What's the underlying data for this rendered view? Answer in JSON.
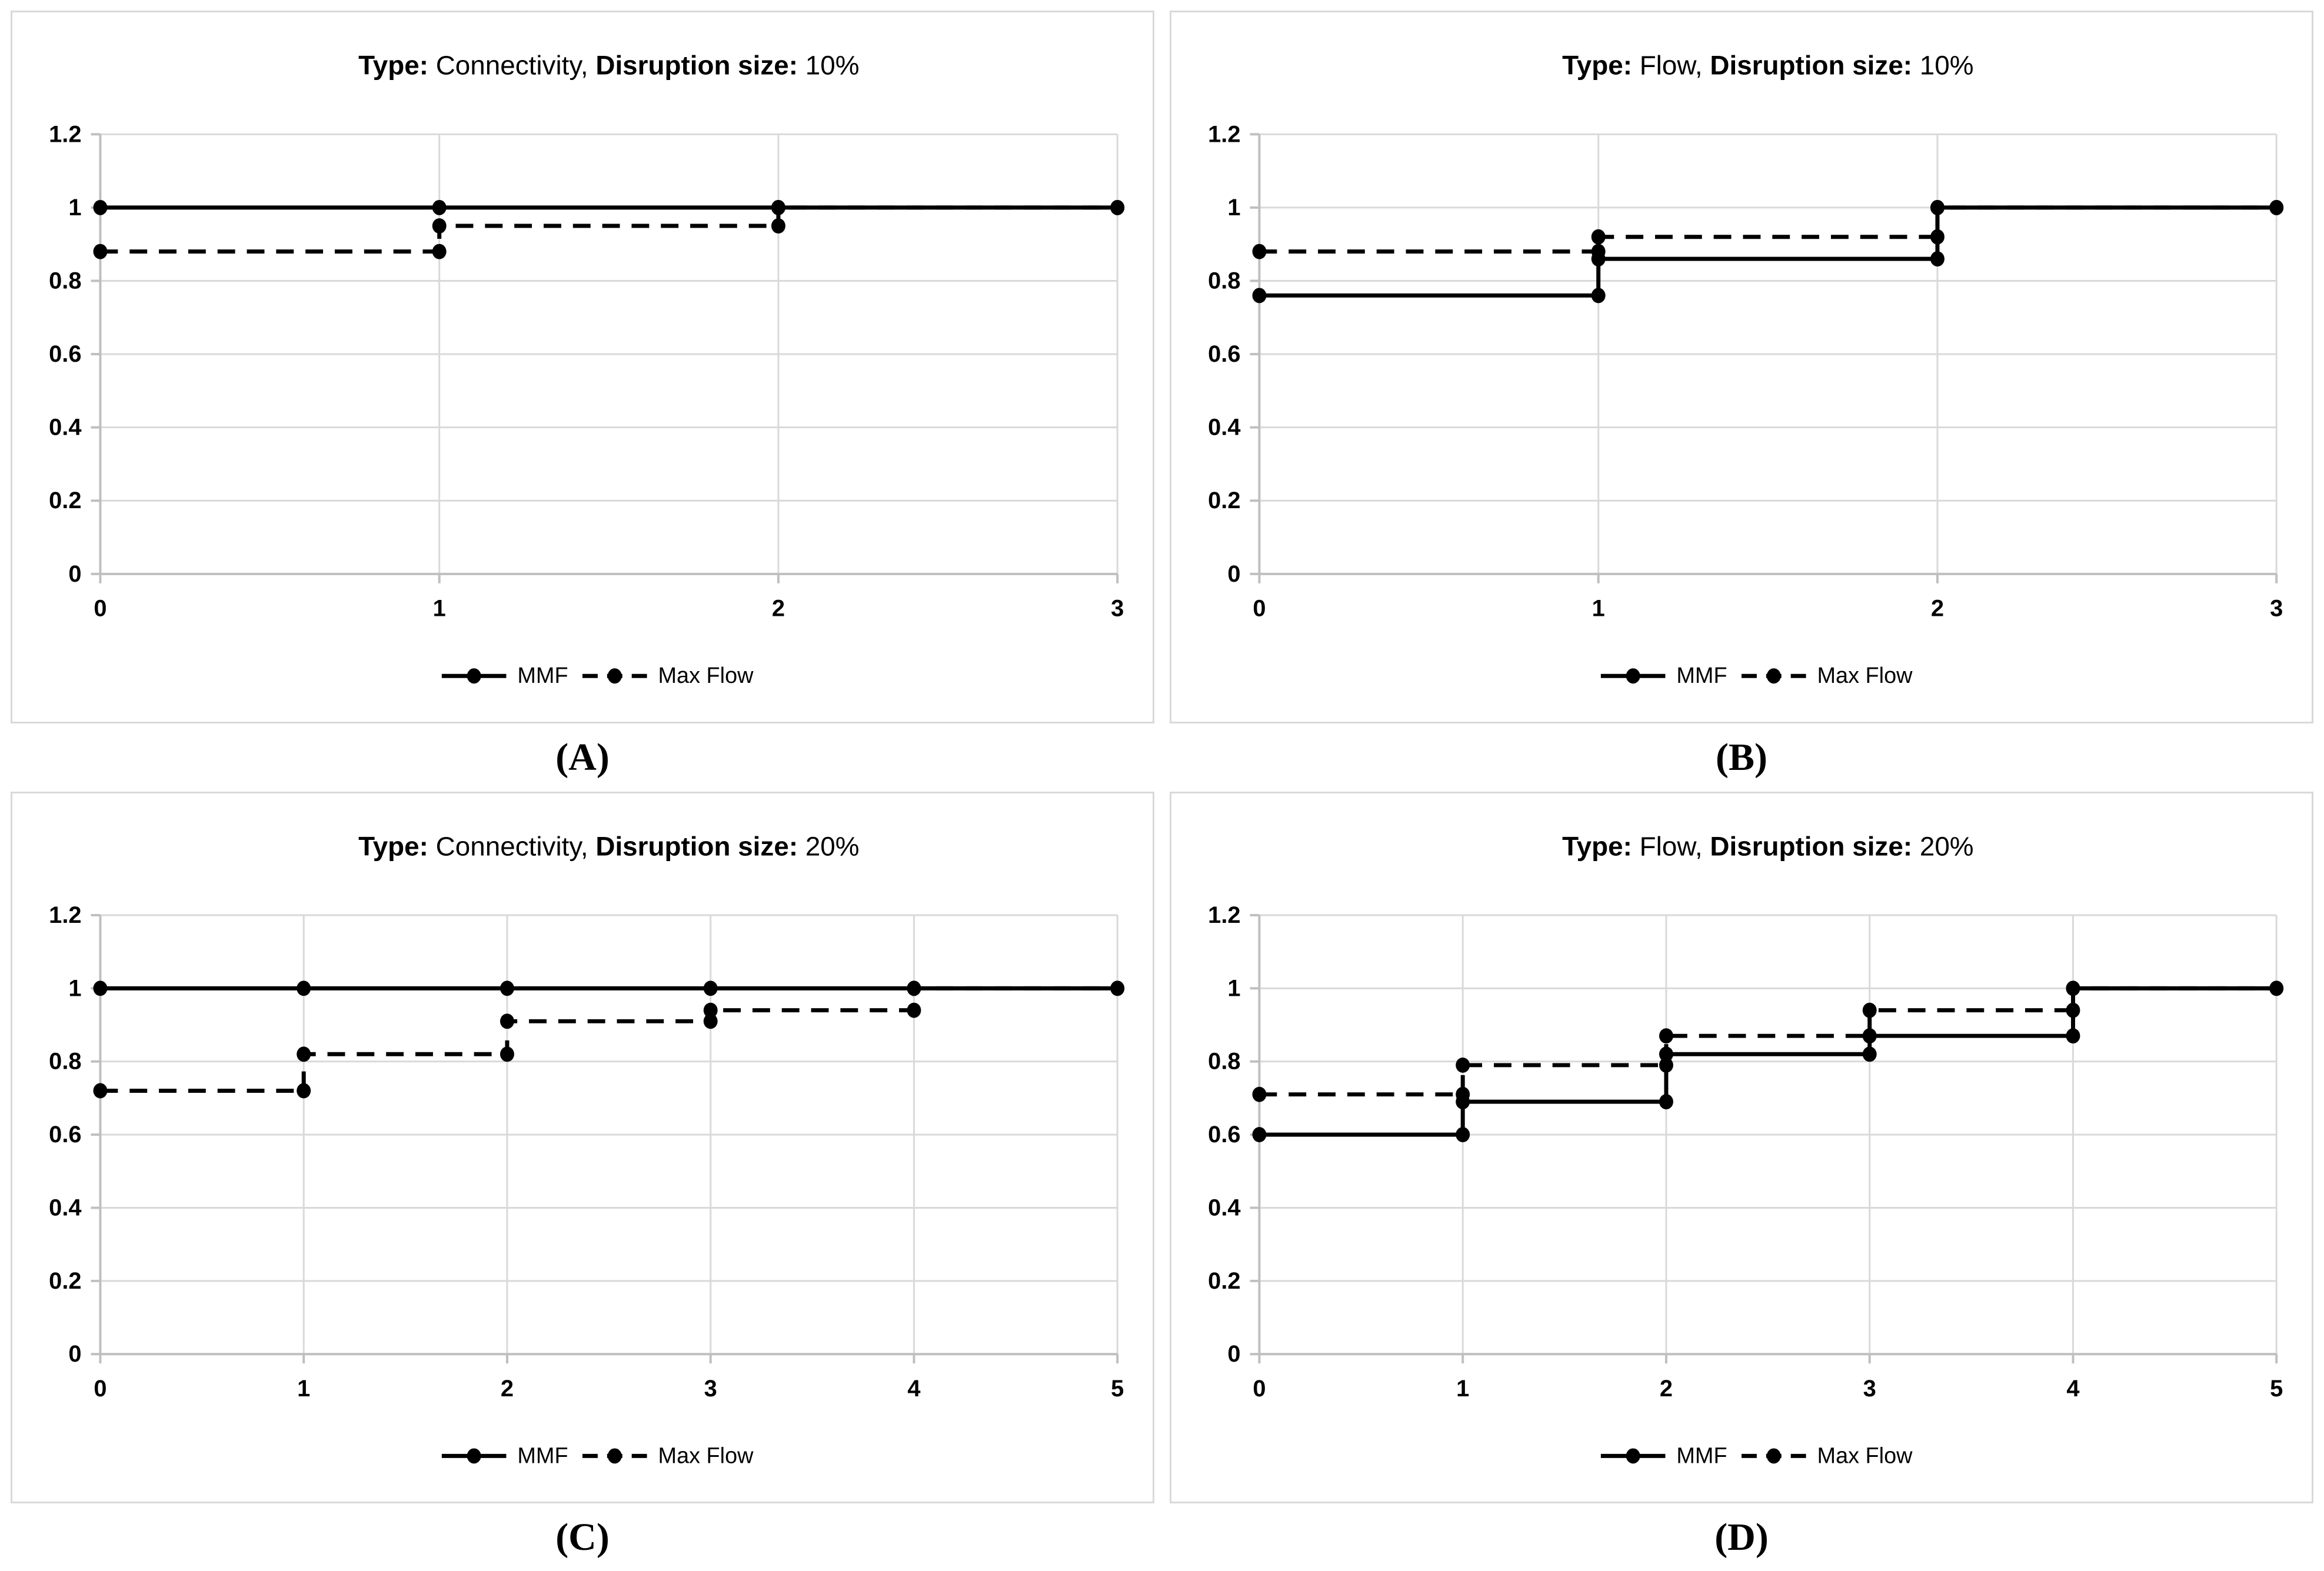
{
  "colors": {
    "series": "#000000",
    "gridline": "#d9d9d9",
    "axis": "#bfbfbf",
    "panel_border": "#d9d9d9",
    "background": "#ffffff"
  },
  "legend": {
    "items": [
      {
        "name": "MMF",
        "style": "solid"
      },
      {
        "name": "Max Flow",
        "style": "dashed"
      }
    ],
    "position": "bottom"
  },
  "chart_data": [
    {
      "id": "A",
      "label": "(A)",
      "type": "line",
      "step": true,
      "title": "Type: Connectivity, Disruption size: 10%",
      "title_segments": [
        {
          "text": "Type:",
          "bold": true
        },
        {
          "text": " Connectivity, ",
          "bold": false
        },
        {
          "text": "Disruption size:",
          "bold": true
        },
        {
          "text": " 10%",
          "bold": false
        }
      ],
      "xlim": [
        0,
        3
      ],
      "ylim": [
        0,
        1.2
      ],
      "xticks": [
        "0",
        "1",
        "2",
        "3"
      ],
      "yticks": [
        {
          "v": 0,
          "label": "0"
        },
        {
          "v": 0.2,
          "label": "0.2"
        },
        {
          "v": 0.4,
          "label": "0.4"
        },
        {
          "v": 0.6,
          "label": "0.6"
        },
        {
          "v": 0.8,
          "label": "0.8"
        },
        {
          "v": 1,
          "label": "1"
        },
        {
          "v": 1.2,
          "label": "1.2"
        }
      ],
      "grid": true,
      "legend_position": "bottom",
      "series": [
        {
          "name": "MMF",
          "dash": "solid",
          "points": [
            [
              0,
              1
            ],
            [
              1,
              1
            ],
            [
              2,
              1
            ],
            [
              3,
              1
            ]
          ]
        },
        {
          "name": "Max Flow",
          "dash": "dashed",
          "points": [
            [
              0,
              0.88
            ],
            [
              1,
              0.88
            ],
            [
              1,
              0.95
            ],
            [
              2,
              0.95
            ],
            [
              2,
              1
            ],
            [
              3,
              1
            ]
          ]
        }
      ]
    },
    {
      "id": "B",
      "label": "(B)",
      "type": "line",
      "step": true,
      "title": "Type: Flow, Disruption size: 10%",
      "title_segments": [
        {
          "text": "Type:",
          "bold": true
        },
        {
          "text": " Flow, ",
          "bold": false
        },
        {
          "text": "Disruption size:",
          "bold": true
        },
        {
          "text": " 10%",
          "bold": false
        }
      ],
      "xlim": [
        0,
        3
      ],
      "ylim": [
        0,
        1.2
      ],
      "xticks": [
        "0",
        "1",
        "2",
        "3"
      ],
      "yticks": [
        {
          "v": 0,
          "label": "0"
        },
        {
          "v": 0.2,
          "label": "0.2"
        },
        {
          "v": 0.4,
          "label": "0.4"
        },
        {
          "v": 0.6,
          "label": "0.6"
        },
        {
          "v": 0.8,
          "label": "0.8"
        },
        {
          "v": 1,
          "label": "1"
        },
        {
          "v": 1.2,
          "label": "1.2"
        }
      ],
      "grid": true,
      "legend_position": "bottom",
      "series": [
        {
          "name": "MMF",
          "dash": "solid",
          "points": [
            [
              0,
              0.76
            ],
            [
              1,
              0.76
            ],
            [
              1,
              0.86
            ],
            [
              2,
              0.86
            ],
            [
              2,
              1
            ],
            [
              3,
              1
            ]
          ]
        },
        {
          "name": "Max Flow",
          "dash": "dashed",
          "points": [
            [
              0,
              0.88
            ],
            [
              1,
              0.88
            ],
            [
              1,
              0.92
            ],
            [
              2,
              0.92
            ],
            [
              2,
              1
            ],
            [
              3,
              1
            ]
          ]
        }
      ]
    },
    {
      "id": "C",
      "label": "(C)",
      "type": "line",
      "step": true,
      "title": "Type: Connectivity, Disruption size: 20%",
      "title_segments": [
        {
          "text": "Type:",
          "bold": true
        },
        {
          "text": " Connectivity, ",
          "bold": false
        },
        {
          "text": "Disruption size:",
          "bold": true
        },
        {
          "text": " 20%",
          "bold": false
        }
      ],
      "xlim": [
        0,
        5
      ],
      "ylim": [
        0,
        1.2
      ],
      "xticks": [
        "0",
        "1",
        "2",
        "3",
        "4",
        "5"
      ],
      "yticks": [
        {
          "v": 0,
          "label": "0"
        },
        {
          "v": 0.2,
          "label": "0.2"
        },
        {
          "v": 0.4,
          "label": "0.4"
        },
        {
          "v": 0.6,
          "label": "0.6"
        },
        {
          "v": 0.8,
          "label": "0.8"
        },
        {
          "v": 1,
          "label": "1"
        },
        {
          "v": 1.2,
          "label": "1.2"
        }
      ],
      "grid": true,
      "legend_position": "bottom",
      "series": [
        {
          "name": "MMF",
          "dash": "solid",
          "points": [
            [
              0,
              1
            ],
            [
              1,
              1
            ],
            [
              2,
              1
            ],
            [
              3,
              1
            ],
            [
              4,
              1
            ],
            [
              5,
              1
            ]
          ]
        },
        {
          "name": "Max Flow",
          "dash": "dashed",
          "points": [
            [
              0,
              0.72
            ],
            [
              1,
              0.72
            ],
            [
              1,
              0.82
            ],
            [
              2,
              0.82
            ],
            [
              2,
              0.91
            ],
            [
              3,
              0.91
            ],
            [
              3,
              0.94
            ],
            [
              4,
              0.94
            ],
            [
              4,
              1
            ],
            [
              5,
              1
            ]
          ]
        }
      ]
    },
    {
      "id": "D",
      "label": "(D)",
      "type": "line",
      "step": true,
      "title": "Type: Flow, Disruption size: 20%",
      "title_segments": [
        {
          "text": "Type:",
          "bold": true
        },
        {
          "text": " Flow, ",
          "bold": false
        },
        {
          "text": "Disruption size:",
          "bold": true
        },
        {
          "text": " 20%",
          "bold": false
        }
      ],
      "xlim": [
        0,
        5
      ],
      "ylim": [
        0,
        1.2
      ],
      "xticks": [
        "0",
        "1",
        "2",
        "3",
        "4",
        "5"
      ],
      "yticks": [
        {
          "v": 0,
          "label": "0"
        },
        {
          "v": 0.2,
          "label": "0.2"
        },
        {
          "v": 0.4,
          "label": "0.4"
        },
        {
          "v": 0.6,
          "label": "0.6"
        },
        {
          "v": 0.8,
          "label": "0.8"
        },
        {
          "v": 1,
          "label": "1"
        },
        {
          "v": 1.2,
          "label": "1.2"
        }
      ],
      "grid": true,
      "legend_position": "bottom",
      "series": [
        {
          "name": "MMF",
          "dash": "solid",
          "points": [
            [
              0,
              0.6
            ],
            [
              1,
              0.6
            ],
            [
              1,
              0.69
            ],
            [
              2,
              0.69
            ],
            [
              2,
              0.82
            ],
            [
              3,
              0.82
            ],
            [
              3,
              0.87
            ],
            [
              4,
              0.87
            ],
            [
              4,
              1
            ],
            [
              5,
              1
            ]
          ]
        },
        {
          "name": "Max Flow",
          "dash": "dashed",
          "points": [
            [
              0,
              0.71
            ],
            [
              1,
              0.71
            ],
            [
              1,
              0.79
            ],
            [
              2,
              0.79
            ],
            [
              2,
              0.87
            ],
            [
              3,
              0.87
            ],
            [
              3,
              0.94
            ],
            [
              4,
              0.94
            ],
            [
              4,
              1
            ],
            [
              5,
              1
            ]
          ]
        }
      ]
    }
  ]
}
